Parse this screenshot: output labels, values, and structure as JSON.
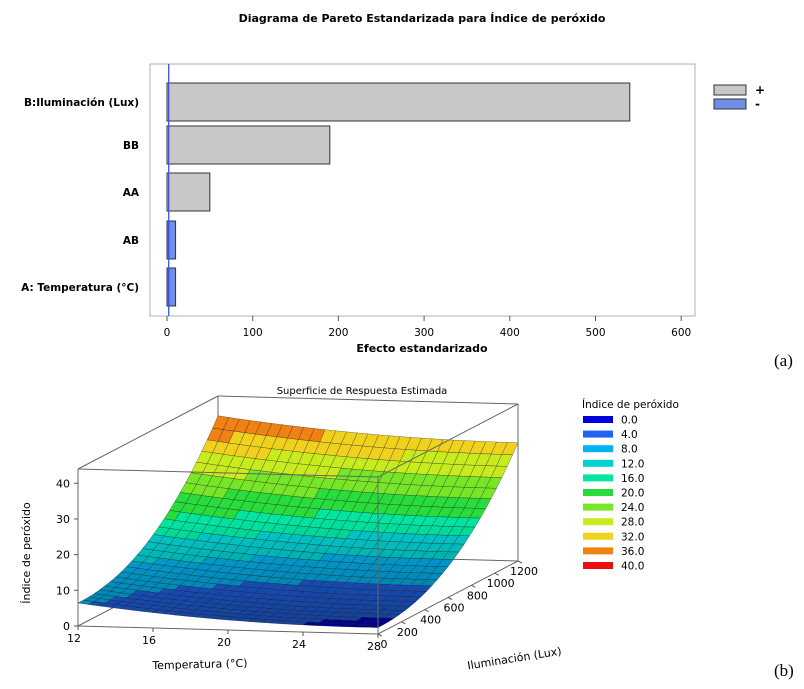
{
  "chart_data": [
    {
      "type": "bar",
      "orientation": "horizontal",
      "title": "Diagrama de Pareto Estandarizada para Índice de peróxido",
      "xlabel": "Efecto estandarizado",
      "ylabel": "",
      "xlim": [
        0,
        600
      ],
      "xticks": [
        "0",
        "100",
        "200",
        "300",
        "400",
        "500",
        "600"
      ],
      "categories": [
        "B:Iluminación (Lux)",
        "BB",
        "AA",
        "AB",
        "A: Temperatura (°C)"
      ],
      "values": [
        540,
        190,
        50,
        10,
        10
      ],
      "signs": [
        "+",
        "+",
        "+",
        "-",
        "-"
      ],
      "reference_line": 2,
      "legend": {
        "position": "right",
        "items": [
          {
            "label": "+",
            "color": "#c8c8c8"
          },
          {
            "label": "-",
            "color": "#6f8fe6"
          }
        ]
      },
      "panel_label": "(a)"
    },
    {
      "type": "surface",
      "title": "Superficie de Respuesta Estimada",
      "xlabel": "Temperatura (°C)",
      "ylabel": "Iluminación (Lux)",
      "zlabel": "Índice de peróxido",
      "xticks": [
        "12",
        "16",
        "20",
        "24",
        "28"
      ],
      "yticks": [
        "0",
        "200",
        "400",
        "600",
        "800",
        "1000",
        "1200"
      ],
      "zticks": [
        "0",
        "10",
        "20",
        "30",
        "40"
      ],
      "xlim": [
        12,
        28
      ],
      "ylim": [
        0,
        1200
      ],
      "zlim": [
        0,
        44
      ],
      "surface": {
        "x_range": [
          12,
          28
        ],
        "y_range": [
          0,
          1200
        ],
        "z_at_x_min_y_min": 7,
        "z_at_x_max_y_min": 2,
        "z_at_x_min_y_max": 39,
        "z_at_x_max_y_max": 38,
        "z_min_in_x": 1.5
      },
      "legend": {
        "title": "Índice de peróxido",
        "levels": [
          "0.0",
          "4.0",
          "8.0",
          "12.0",
          "16.0",
          "20.0",
          "24.0",
          "28.0",
          "32.0",
          "36.0",
          "40.0"
        ],
        "colors": [
          "#0000dc",
          "#1e64f0",
          "#00b4f0",
          "#00d2d2",
          "#00e6a0",
          "#28dc3c",
          "#78e628",
          "#c8eb1e",
          "#f0d21e",
          "#f08214",
          "#eb0f0f"
        ]
      },
      "panel_label": "(b)"
    }
  ]
}
